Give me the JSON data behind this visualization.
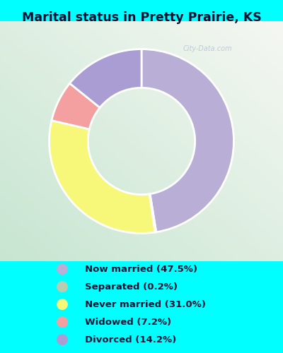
{
  "title": "Marital status in Pretty Prairie, KS",
  "slices": [
    {
      "label": "Now married (47.5%)",
      "value": 47.5,
      "color": "#b8aed6"
    },
    {
      "label": "Separated (0.2%)",
      "value": 0.2,
      "color": "#b8ccb0"
    },
    {
      "label": "Never married (31.0%)",
      "value": 31.0,
      "color": "#f7f77a"
    },
    {
      "label": "Widowed (7.2%)",
      "value": 7.2,
      "color": "#f4a0a0"
    },
    {
      "label": "Divorced (14.2%)",
      "value": 14.2,
      "color": "#a99dd4"
    }
  ],
  "legend_colors": [
    "#b8aed6",
    "#b8ccb0",
    "#f7f77a",
    "#f4a0a0",
    "#a99dd4"
  ],
  "legend_labels": [
    "Now married (47.5%)",
    "Separated (0.2%)",
    "Never married (31.0%)",
    "Widowed (7.2%)",
    "Divorced (14.2%)"
  ],
  "bg_cyan": "#00ffff",
  "bg_chart_color1": "#c8e8cc",
  "bg_chart_color2": "#e8f4ea",
  "title_color": "#111133",
  "start_angle": 90,
  "watermark": "City-Data.com"
}
